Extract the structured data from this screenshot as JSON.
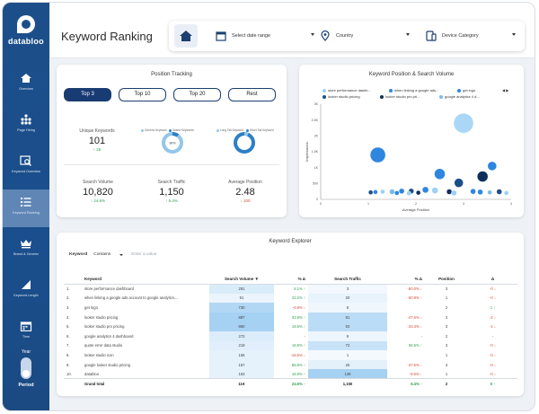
{
  "app": {
    "logo_text": "databloo",
    "page_title": "Keyword Ranking"
  },
  "sidebar": {
    "items": [
      {
        "label": "Overview",
        "icon": "home-icon"
      },
      {
        "label": "Page Hiring",
        "icon": "hierarchy-icon"
      },
      {
        "label": "Keyword Overview",
        "icon": "search-chart-icon"
      },
      {
        "label": "Keyword Ranking",
        "icon": "list-icon",
        "active": true
      },
      {
        "label": "Brand & Generic",
        "icon": "crown-icon"
      },
      {
        "label": "Keyword Length",
        "icon": "triangle-chart-icon"
      },
      {
        "label": "Time",
        "icon": "calendar-icon"
      }
    ],
    "period": {
      "year_label": "Year",
      "label": "Period"
    }
  },
  "filters": {
    "date_range": "Select date range",
    "country": "Country",
    "device": "Device Category"
  },
  "position_tracking": {
    "title": "Position Tracking",
    "tabs": [
      "Top 3",
      "Top 10",
      "Top 20",
      "Rest"
    ],
    "unique_keywords": {
      "label": "Unique Keywords",
      "value": "101",
      "delta": "↑ 25"
    },
    "donut_left": {
      "legend": [
        "Generic Keyword",
        "Brand Keywords"
      ],
      "center": "90%",
      "colors": [
        "#93c6ea",
        "#2e7fc4"
      ]
    },
    "donut_right": {
      "legend": [
        "Long Tail Keyword",
        "Short Tail Keyword"
      ],
      "colors": [
        "#93c6ea",
        "#2e7fc4"
      ]
    },
    "search_volume": {
      "label": "Search Volume",
      "value": "10,820",
      "delta": "↑ 24.6%"
    },
    "search_traffic": {
      "label": "Search Traffic",
      "value": "1,150",
      "delta": "↑ 6.4%"
    },
    "average_position": {
      "label": "Average Position",
      "value": "2.48",
      "delta": "↓ 100"
    }
  },
  "scatter": {
    "title": "Keyword Position & Search Volume",
    "legend": [
      {
        "name": "store performance dashb...",
        "color": "#9ed0f2"
      },
      {
        "name": "when linking a google ads...",
        "color": "#2e86de"
      },
      {
        "name": "get logo",
        "color": "#2e86de"
      },
      {
        "name": "looker studio pricing",
        "color": "#1c4f8a"
      },
      {
        "name": "looker studio pro pri...",
        "color": "#0d2f5c"
      },
      {
        "name": "google analytics 4 d...",
        "color": "#7dbbe6"
      }
    ],
    "legend_arrow": "◀ ▶"
  },
  "chart_data": {
    "type": "scatter",
    "title": "Keyword Position & Search Volume",
    "xlabel": "Average Position",
    "ylabel": "Impressions",
    "xlim": [
      0,
      4
    ],
    "ylim": [
      0,
      3000
    ],
    "xticks": [
      "0",
      "1",
      "2",
      "3",
      "4"
    ],
    "yticks": [
      "0",
      "500",
      "1K",
      "1.5K",
      "2K",
      "2.5K",
      "3K"
    ],
    "points": [
      {
        "x": 3.0,
        "y": 2400,
        "size": 11,
        "color": "#aad7f5"
      },
      {
        "x": 1.2,
        "y": 1400,
        "size": 8.5,
        "color": "#2e86de"
      },
      {
        "x": 2.5,
        "y": 800,
        "size": 6,
        "color": "#2e86de"
      },
      {
        "x": 3.4,
        "y": 720,
        "size": 6,
        "color": "#0d2f5c"
      },
      {
        "x": 2.9,
        "y": 520,
        "size": 5,
        "color": "#1c4f8a"
      },
      {
        "x": 3.6,
        "y": 1050,
        "size": 5,
        "color": "#2e86de"
      },
      {
        "x": 2.2,
        "y": 300,
        "size": 3.5,
        "color": "#2e86de"
      },
      {
        "x": 2.4,
        "y": 280,
        "size": 3.5,
        "color": "#9ed0f2"
      },
      {
        "x": 1.9,
        "y": 260,
        "size": 3,
        "color": "#1c4f8a"
      },
      {
        "x": 1.5,
        "y": 240,
        "size": 3,
        "color": "#7dbbe6"
      },
      {
        "x": 1.7,
        "y": 260,
        "size": 3,
        "color": "#2e86de"
      },
      {
        "x": 1.15,
        "y": 230,
        "size": 2.5,
        "color": "#2e86de"
      },
      {
        "x": 1.3,
        "y": 240,
        "size": 2.5,
        "color": "#9ed0f2"
      },
      {
        "x": 1.05,
        "y": 220,
        "size": 2.5,
        "color": "#1c4f8a"
      },
      {
        "x": 2.7,
        "y": 240,
        "size": 3,
        "color": "#0d2f5c"
      },
      {
        "x": 2.8,
        "y": 200,
        "size": 3,
        "color": "#9ed0f2"
      },
      {
        "x": 3.2,
        "y": 250,
        "size": 3,
        "color": "#2e86de"
      },
      {
        "x": 3.35,
        "y": 230,
        "size": 3,
        "color": "#2e86de"
      },
      {
        "x": 3.55,
        "y": 220,
        "size": 2.5,
        "color": "#7dbbe6"
      },
      {
        "x": 3.75,
        "y": 240,
        "size": 3,
        "color": "#1c4f8a"
      },
      {
        "x": 3.9,
        "y": 200,
        "size": 2.5,
        "color": "#9ed0f2"
      },
      {
        "x": 2.05,
        "y": 210,
        "size": 2.5,
        "color": "#0d2f5c"
      },
      {
        "x": 1.6,
        "y": 200,
        "size": 2.5,
        "color": "#2e86de"
      },
      {
        "x": 1.85,
        "y": 190,
        "size": 2.5,
        "color": "#9ed0f2"
      }
    ]
  },
  "explorer": {
    "title": "Keyword Explorer",
    "filter": {
      "label": "Keyword",
      "operator": "Contains",
      "placeholder": "Enter a value"
    },
    "columns": [
      "Keyword",
      "Search Volume ▼",
      "% Δ",
      "Search Traffic",
      "% Δ",
      "Position",
      "Δ"
    ],
    "rows": [
      {
        "n": "1.",
        "kw": "store performance dashboard",
        "sv": "291",
        "svp": "8.1% ↑",
        "st": "3",
        "stp": "-50.0% ↓",
        "pos": "3",
        "d": "-0 ↓"
      },
      {
        "n": "2.",
        "kw": "when linking a google ads account to google analytics,...",
        "sv": "91",
        "svp": "22.2% ↑",
        "st": "20",
        "stp": "-60.8% ↓",
        "pos": "1",
        "d": "-0 ↓"
      },
      {
        "n": "3.",
        "kw": "get logo",
        "sv": "730",
        "svp": "-6.8% ↓",
        "st": "8",
        "stp": "",
        "pos": "2",
        "d": "1 ↑"
      },
      {
        "n": "4.",
        "kw": "looker studio pricing",
        "sv": "887",
        "svp": "33.9% ↑",
        "st": "91",
        "stp": "-47.6% ↓",
        "pos": "3",
        "d": "-2 ↓"
      },
      {
        "n": "5.",
        "kw": "looker studio pro pricing",
        "sv": "860",
        "svp": "19.5% ↑",
        "st": "93",
        "stp": "-33.3% ↓",
        "pos": "3",
        "d": "-1 ↓"
      },
      {
        "n": "6.",
        "kw": "google analytics 4 dashboard",
        "sv": "272",
        "svp": "-",
        "st": "9",
        "stp": "-",
        "pos": "2",
        "d": "-"
      },
      {
        "n": "7.",
        "kw": "quote error data studio",
        "sv": "219",
        "svp": "16.9% ↑",
        "st": "72",
        "stp": "56.5% ↑",
        "pos": "3",
        "d": "-0 ↓"
      },
      {
        "n": "8.",
        "kw": "looker studio icon",
        "sv": "156",
        "svp": "-18.6% ↓",
        "st": "1",
        "stp": "",
        "pos": "1",
        "d": "-0 ↓"
      },
      {
        "n": "9.",
        "kw": "google looker studio pricing",
        "sv": "157",
        "svp": "68.8% ↑",
        "st": "25",
        "stp": "-37.5% ↓",
        "pos": "3",
        "d": "-0 ↓"
      },
      {
        "n": "10.",
        "kw": "databloo",
        "sv": "163",
        "svp": "16.9% ↑",
        "st": "128",
        "stp": "-8.6% ↓",
        "pos": "1",
        "d": "-0 ↓"
      }
    ],
    "total": {
      "label": "Grand total",
      "sv": "11K",
      "svp": "24.6% ↑",
      "st": "1,150",
      "stp": "6.4% ↑",
      "pos": "2",
      "d": "0 ↑"
    }
  }
}
